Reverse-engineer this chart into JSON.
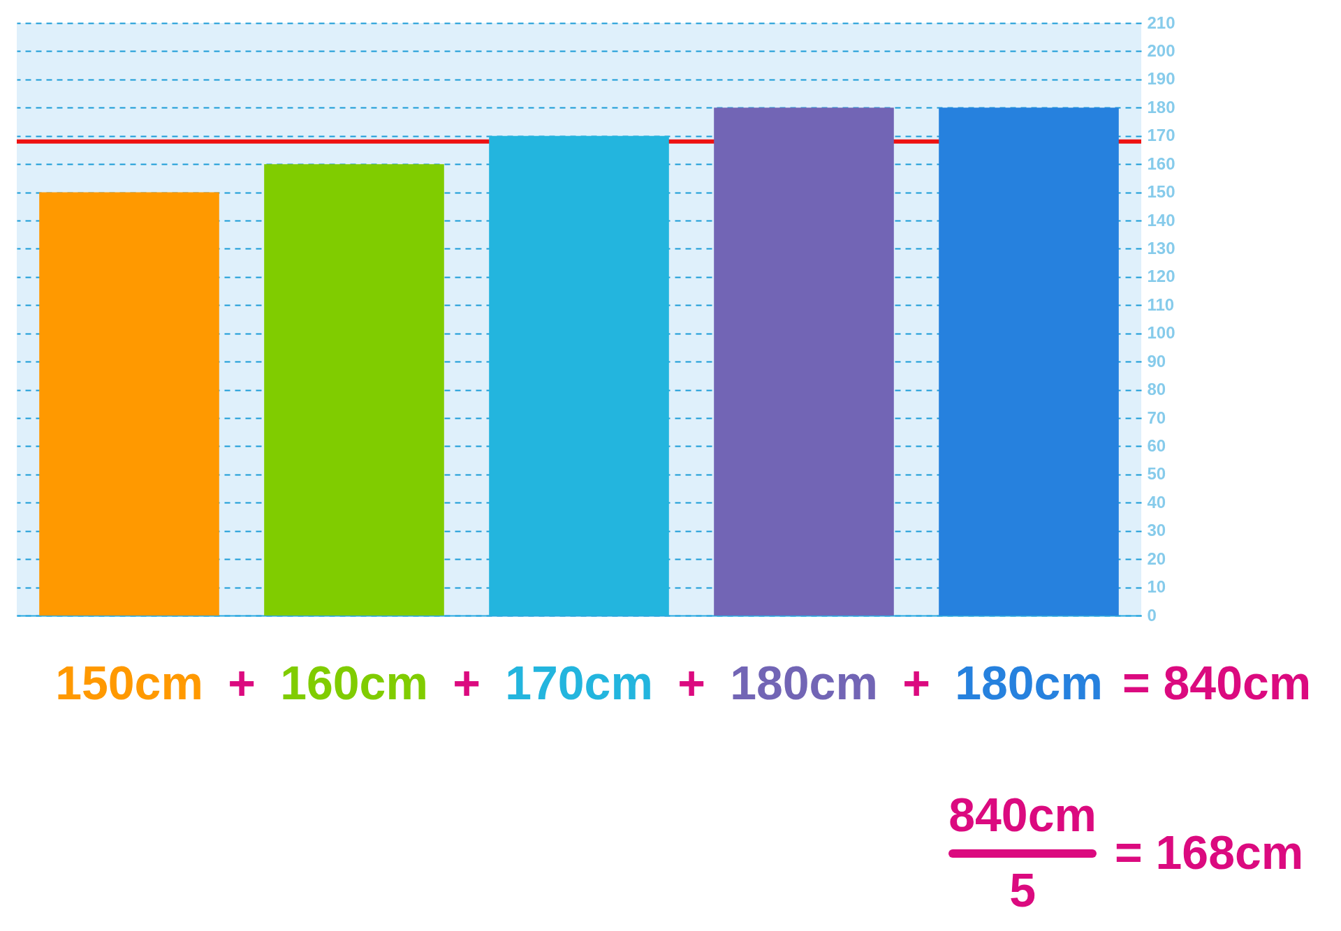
{
  "chart_data": {
    "type": "bar",
    "categories": [
      null,
      null,
      null,
      null,
      null
    ],
    "values": [
      150,
      160,
      170,
      180,
      180
    ],
    "colors": [
      "#ff9900",
      "#80cc00",
      "#23b5de",
      "#7265b5",
      "#2681de"
    ],
    "value_labels": [
      "150cm",
      "160cm",
      "170cm",
      "180cm",
      "180cm"
    ],
    "ylim": [
      0,
      210
    ],
    "yticks": [
      0,
      10,
      20,
      30,
      40,
      50,
      60,
      70,
      80,
      90,
      100,
      110,
      120,
      130,
      140,
      150,
      160,
      170,
      180,
      190,
      200,
      210
    ],
    "grid": "y",
    "tick_labels": "y",
    "ref_lines": [
      {
        "axis": "y",
        "value": 168,
        "color": "#ee1111"
      }
    ],
    "annotations": [
      "+",
      "+",
      "+",
      "+",
      "= 840cm",
      "840cm",
      "5",
      "= 168cm"
    ]
  }
}
